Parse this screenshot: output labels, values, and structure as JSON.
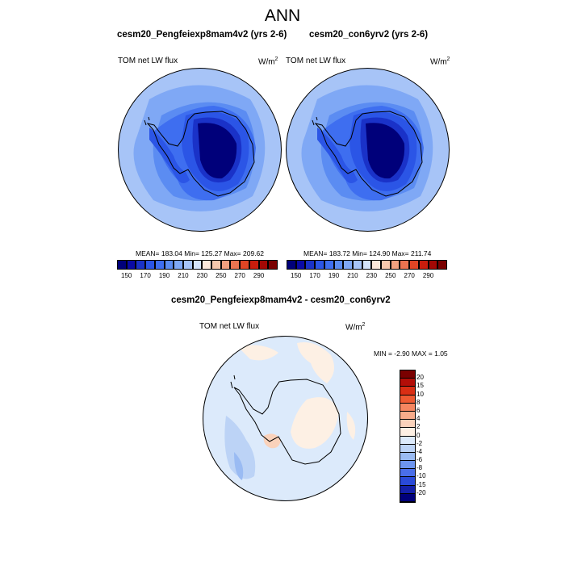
{
  "season": "ANN",
  "panels": [
    {
      "title": "cesm20_Pengfeiexp8mam4v2 (yrs 2-6)",
      "variable_label": "TOM net LW flux",
      "units": "W/m",
      "units_exponent": "2",
      "stats": {
        "mean": "183.04",
        "min": "125.27",
        "max": "209.62"
      },
      "stats_text": "MEAN= 183.04  Min= 125.27  Max= 209.62"
    },
    {
      "title": "cesm20_con6yrv2 (yrs 2-6)",
      "variable_label": "TOM net LW flux",
      "units": "W/m",
      "units_exponent": "2",
      "stats": {
        "mean": "183.72",
        "min": "124.90",
        "max": "211.74"
      },
      "stats_text": "MEAN= 183.72  Min= 124.90  Max= 211.74"
    }
  ],
  "difference": {
    "title": "cesm20_Pengfeiexp8mam4v2 - cesm20_con6yrv2",
    "variable_label": "TOM net LW flux",
    "units": "W/m",
    "units_exponent": "2",
    "stats_text": "MIN =  -2.90 MAX =    1.05",
    "stats": {
      "min": "-2.90",
      "max": "1.05"
    }
  },
  "colorbar_fields": {
    "tick_labels": [
      "150",
      "170",
      "190",
      "210",
      "230",
      "250",
      "270",
      "290"
    ],
    "colors": [
      "#00007a",
      "#0a0aa6",
      "#1a32c8",
      "#2b55e6",
      "#3e6ef0",
      "#5b8cf2",
      "#7fa8f5",
      "#a7c4f7",
      "#d4e4fb",
      "#fbe8da",
      "#f7c8ad",
      "#f2a07f",
      "#ec7350",
      "#e04525",
      "#c91d0d",
      "#a30805",
      "#7a0000"
    ]
  },
  "colorbar_diff": {
    "levels": [
      "20",
      "15",
      "10",
      "8",
      "6",
      "4",
      "2",
      "0",
      "-2",
      "-4",
      "-6",
      "-8",
      "-10",
      "-15",
      "-20"
    ],
    "colors": [
      "#7a0000",
      "#b30e08",
      "#d92e14",
      "#ee5a32",
      "#f58660",
      "#f7ab8a",
      "#fad2bb",
      "#fdf0e4",
      "#dceafb",
      "#bcd3f6",
      "#9abbf3",
      "#6d95ef",
      "#4a6ee9",
      "#2a4ad8",
      "#1420a8",
      "#00007a"
    ]
  },
  "chart_data": {
    "type": "heatmap",
    "projection": "south-polar stereographic",
    "field_levels": [
      150,
      160,
      170,
      180,
      190,
      200,
      210,
      220,
      230,
      240,
      250,
      260,
      270,
      280,
      290
    ],
    "diff_levels": [
      -20,
      -15,
      -10,
      -8,
      -6,
      -4,
      -2,
      0,
      2,
      4,
      6,
      8,
      10,
      15,
      20
    ],
    "panels": [
      "cesm20_Pengfeiexp8mam4v2 (yrs 2-6)",
      "cesm20_con6yrv2 (yrs 2-6)",
      "cesm20_Pengfeiexp8mam4v2 - cesm20_con6yrv2"
    ]
  }
}
